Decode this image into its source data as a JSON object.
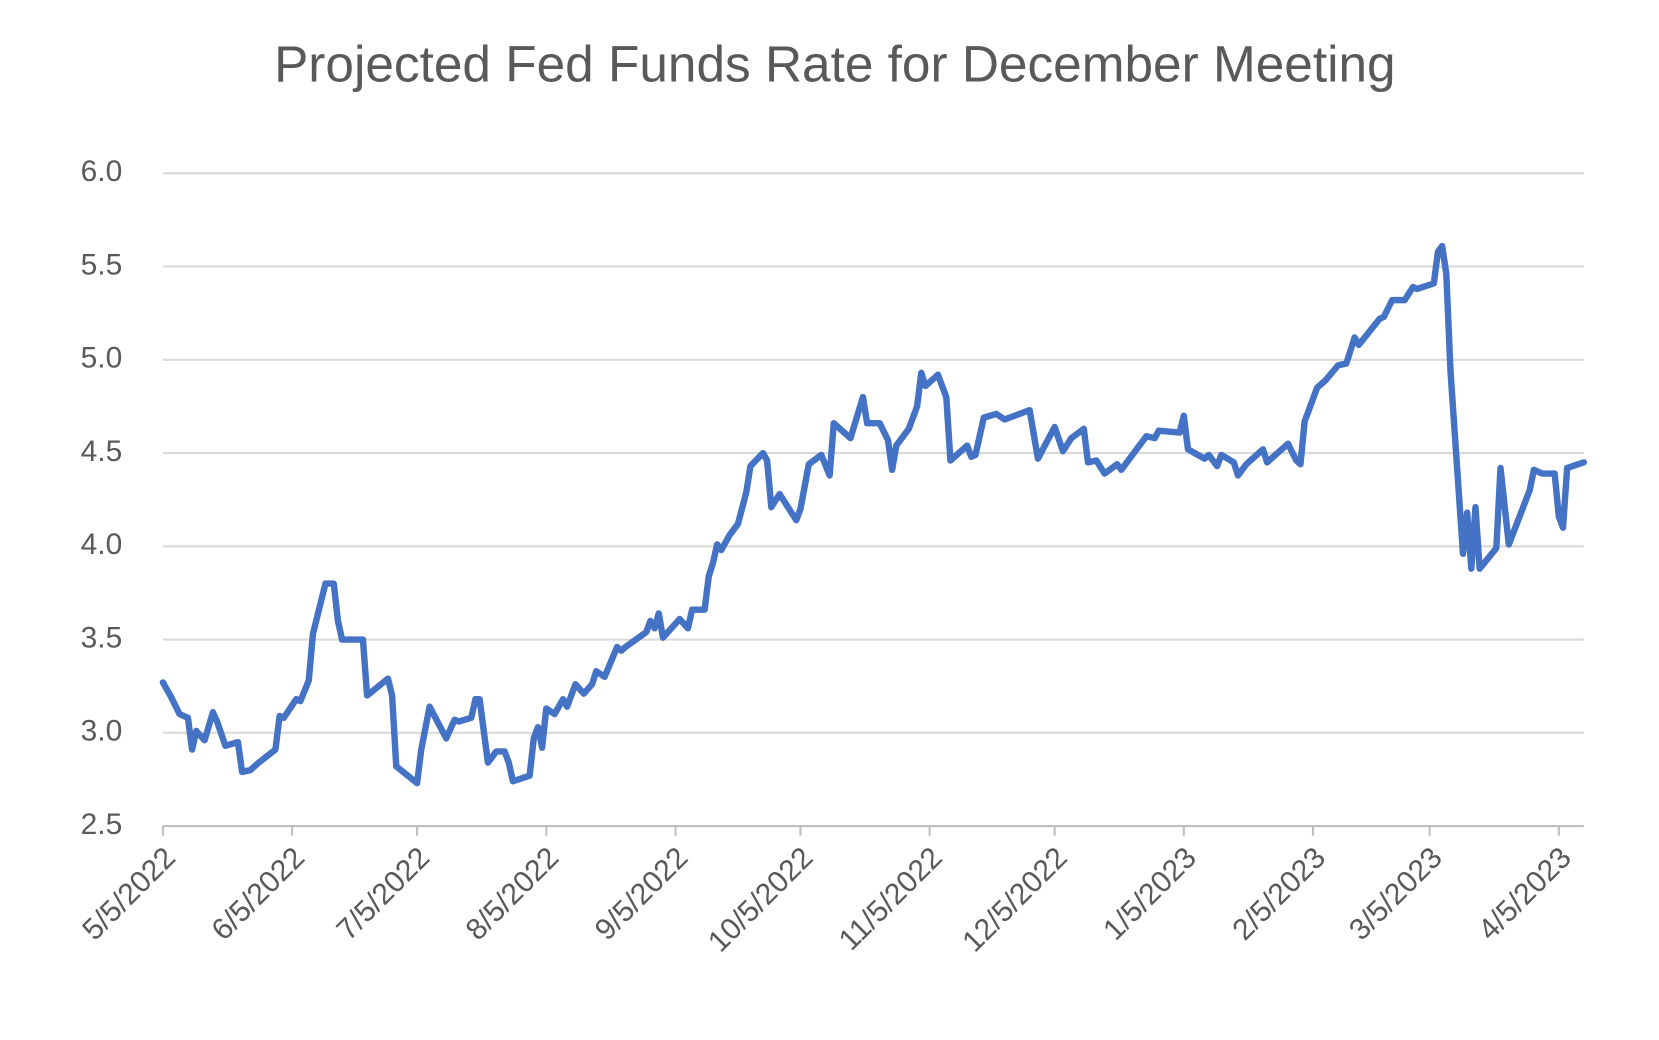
{
  "chart_data": {
    "type": "line",
    "title": "Projected Fed Funds Rate for December Meeting",
    "x": [
      "5/5/2022",
      "5/7/2022",
      "5/9/2022",
      "5/11/2022",
      "5/12/2022",
      "5/13/2022",
      "5/15/2022",
      "5/17/2022",
      "5/18/2022",
      "5/20/2022",
      "5/23/2022",
      "5/24/2022",
      "5/26/2022",
      "5/28/2022",
      "6/1/2022",
      "6/2/2022",
      "6/3/2022",
      "6/6/2022",
      "6/7/2022",
      "6/9/2022",
      "6/10/2022",
      "6/13/2022",
      "6/15/2022",
      "6/16/2022",
      "6/17/2022",
      "6/22/2022",
      "6/23/2022",
      "6/28/2022",
      "6/29/2022",
      "6/30/2022",
      "7/5/2022",
      "7/6/2022",
      "7/8/2022",
      "7/12/2022",
      "7/14/2022",
      "7/15/2022",
      "7/18/2022",
      "7/19/2022",
      "7/20/2022",
      "7/22/2022",
      "7/24/2022",
      "7/26/2022",
      "7/27/2022",
      "7/28/2022",
      "8/1/2022",
      "8/2/2022",
      "8/3/2022",
      "8/4/2022",
      "8/5/2022",
      "8/7/2022",
      "8/9/2022",
      "8/10/2022",
      "8/12/2022",
      "8/14/2022",
      "8/16/2022",
      "8/17/2022",
      "8/19/2022",
      "8/22/2022",
      "8/23/2022",
      "8/24/2022",
      "8/29/2022",
      "8/30/2022",
      "8/31/2022",
      "9/1/2022",
      "9/2/2022",
      "9/6/2022",
      "9/8/2022",
      "9/9/2022",
      "9/12/2022",
      "9/13/2022",
      "9/14/2022",
      "9/15/2022",
      "9/16/2022",
      "9/18/2022",
      "9/20/2022",
      "9/22/2022",
      "9/23/2022",
      "9/26/2022",
      "9/27/2022",
      "9/28/2022",
      "9/30/2022",
      "10/4/2022",
      "10/5/2022",
      "10/7/2022",
      "10/10/2022",
      "10/12/2022",
      "10/13/2022",
      "10/17/2022",
      "10/20/2022",
      "10/21/2022",
      "10/24/2022",
      "10/26/2022",
      "10/27/2022",
      "10/28/2022",
      "10/31/2022",
      "11/2/2022",
      "11/3/2022",
      "11/4/2022",
      "11/7/2022",
      "11/9/2022",
      "11/10/2022",
      "11/14/2022",
      "11/15/2022",
      "11/16/2022",
      "11/18/2022",
      "11/21/2022",
      "11/23/2022",
      "11/29/2022",
      "12/1/2022",
      "12/5/2022",
      "12/7/2022",
      "12/9/2022",
      "12/12/2022",
      "12/13/2022",
      "12/15/2022",
      "12/17/2022",
      "12/20/2022",
      "12/21/2022",
      "12/24/2022",
      "12/27/2022",
      "12/29/2022",
      "12/30/2022",
      "1/4/2023",
      "1/5/2023",
      "1/6/2023",
      "1/10/2023",
      "1/11/2023",
      "1/13/2023",
      "1/14/2023",
      "1/17/2023",
      "1/18/2023",
      "1/20/2023",
      "1/24/2023",
      "1/25/2023",
      "1/27/2023",
      "1/30/2023",
      "2/1/2023",
      "2/2/2023",
      "2/3/2023",
      "2/6/2023",
      "2/8/2023",
      "2/11/2023",
      "2/13/2023",
      "2/15/2023",
      "2/16/2023",
      "2/21/2023",
      "2/22/2023",
      "2/24/2023",
      "2/27/2023",
      "3/1/2023",
      "3/2/2023",
      "3/6/2023",
      "3/7/2023",
      "3/8/2023",
      "3/9/2023",
      "3/10/2023",
      "3/13/2023",
      "3/14/2023",
      "3/15/2023",
      "3/16/2023",
      "3/17/2023",
      "3/21/2023",
      "3/22/2023",
      "3/24/2023",
      "3/29/2023",
      "3/30/2023",
      "4/1/2023",
      "4/4/2023",
      "4/5/2023",
      "4/6/2023",
      "4/7/2023",
      "4/11/2023"
    ],
    "series": [
      {
        "color": "#4472c4",
        "values": [
          3.27,
          3.19,
          3.1,
          3.08,
          2.91,
          3.01,
          2.96,
          3.11,
          3.06,
          2.93,
          2.95,
          2.79,
          2.8,
          2.84,
          2.91,
          3.09,
          3.08,
          3.18,
          3.17,
          3.28,
          3.53,
          3.8,
          3.8,
          3.6,
          3.5,
          3.5,
          3.2,
          3.29,
          3.2,
          2.82,
          2.73,
          2.91,
          3.14,
          2.97,
          3.07,
          3.06,
          3.08,
          3.18,
          3.18,
          2.84,
          2.9,
          2.9,
          2.84,
          2.74,
          2.77,
          2.97,
          3.03,
          2.92,
          3.13,
          3.1,
          3.18,
          3.14,
          3.26,
          3.21,
          3.26,
          3.33,
          3.3,
          3.46,
          3.44,
          3.46,
          3.54,
          3.6,
          3.56,
          3.64,
          3.51,
          3.61,
          3.56,
          3.66,
          3.66,
          3.84,
          3.91,
          4.01,
          3.98,
          4.06,
          4.12,
          4.29,
          4.43,
          4.5,
          4.46,
          4.21,
          4.28,
          4.14,
          4.2,
          4.44,
          4.49,
          4.38,
          4.66,
          4.58,
          4.8,
          4.66,
          4.66,
          4.57,
          4.41,
          4.54,
          4.63,
          4.75,
          4.93,
          4.86,
          4.92,
          4.8,
          4.46,
          4.54,
          4.48,
          4.49,
          4.69,
          4.71,
          4.68,
          4.73,
          4.47,
          4.64,
          4.51,
          4.58,
          4.63,
          4.45,
          4.46,
          4.39,
          4.44,
          4.41,
          4.5,
          4.59,
          4.58,
          4.62,
          4.61,
          4.7,
          4.52,
          4.47,
          4.49,
          4.43,
          4.49,
          4.45,
          4.38,
          4.44,
          4.52,
          4.45,
          4.49,
          4.55,
          4.46,
          4.44,
          4.67,
          4.85,
          4.89,
          4.97,
          4.98,
          5.12,
          5.08,
          5.22,
          5.23,
          5.32,
          5.32,
          5.39,
          5.38,
          5.41,
          5.58,
          5.61,
          5.46,
          4.94,
          3.96,
          4.18,
          3.88,
          4.21,
          3.88,
          3.99,
          4.42,
          4.01,
          4.3,
          4.41,
          4.39,
          4.39,
          4.16,
          4.1,
          4.42,
          4.45
        ]
      }
    ],
    "xlim": [
      "5/5/2022",
      "4/11/2023"
    ],
    "xticks": [
      "5/5/2022",
      "6/5/2022",
      "7/5/2022",
      "8/5/2022",
      "9/5/2022",
      "10/5/2022",
      "11/5/2022",
      "12/5/2022",
      "1/5/2023",
      "2/5/2023",
      "3/5/2023",
      "4/5/2023"
    ],
    "ylim": [
      2.5,
      6.0
    ],
    "yticks": [
      {
        "value": 2.5,
        "label": "2.5"
      },
      {
        "value": 3.0,
        "label": "3.0"
      },
      {
        "value": 3.5,
        "label": "3.5"
      },
      {
        "value": 4.0,
        "label": "4.0"
      },
      {
        "value": 4.5,
        "label": "4.5"
      },
      {
        "value": 5.0,
        "label": "5.0"
      },
      {
        "value": 5.5,
        "label": "5.5"
      },
      {
        "value": 6.0,
        "label": "6.0"
      }
    ],
    "grid": true
  }
}
